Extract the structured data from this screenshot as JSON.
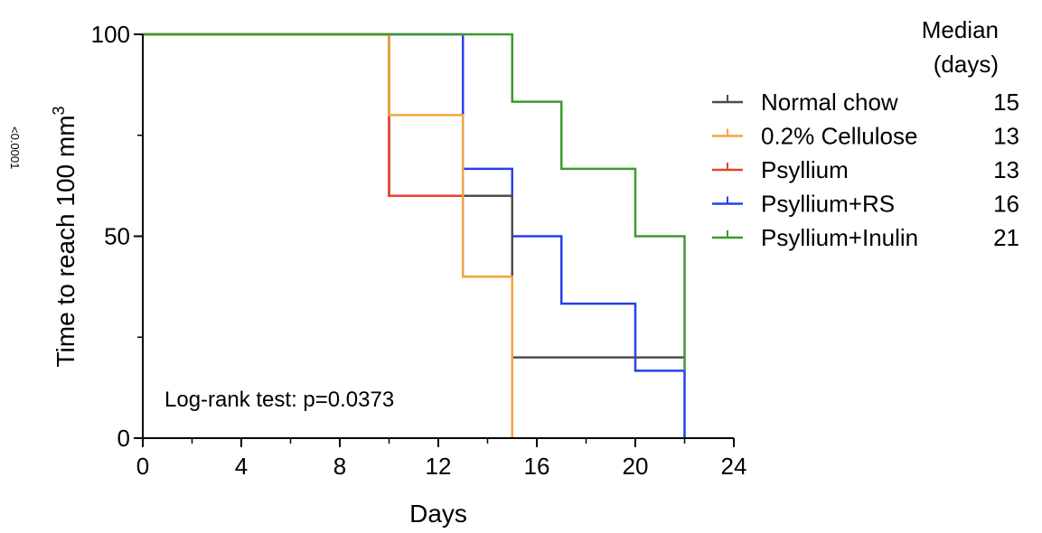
{
  "chart_data": {
    "type": "line",
    "step": true,
    "xlabel": "Days",
    "ylabel": "Time to reach 100 mm",
    "ylabel_superscript": "3",
    "xlim": [
      0,
      24
    ],
    "ylim": [
      0,
      100
    ],
    "x_ticks": [
      "0",
      "4",
      "8",
      "12",
      "16",
      "20",
      "24"
    ],
    "y_ticks": [
      "0",
      "50",
      "100"
    ],
    "grid": false,
    "legend_position": "right",
    "legend_header": [
      "Median",
      "(days)"
    ],
    "annotation": "Log-rank test: p=0.0373",
    "edge_text": "<0.0001",
    "series": [
      {
        "name": "Normal chow",
        "median": "15",
        "color": "#4d4d4d",
        "x": [
          0,
          10,
          13,
          15,
          22
        ],
        "y": [
          100,
          60,
          60,
          20,
          20
        ]
      },
      {
        "name": "0.2% Cellulose",
        "median": "13",
        "color": "#f4a340",
        "x": [
          0,
          10,
          13,
          15
        ],
        "y": [
          100,
          80,
          40,
          0
        ]
      },
      {
        "name": "Psyllium",
        "median": "13",
        "color": "#e8412b",
        "x": [
          0,
          10,
          13,
          15
        ],
        "y": [
          100,
          60,
          40,
          0
        ]
      },
      {
        "name": "Psyllium+RS",
        "median": "16",
        "color": "#2541e8",
        "x": [
          0,
          13,
          15,
          17,
          20,
          22
        ],
        "y": [
          100,
          66.7,
          50,
          33.3,
          16.7,
          0
        ]
      },
      {
        "name": "Psyllium+Inulin",
        "median": "21",
        "color": "#3c9a2e",
        "x": [
          0,
          15,
          17,
          20,
          22
        ],
        "y": [
          100,
          83.3,
          66.7,
          50,
          16.7
        ]
      }
    ]
  }
}
